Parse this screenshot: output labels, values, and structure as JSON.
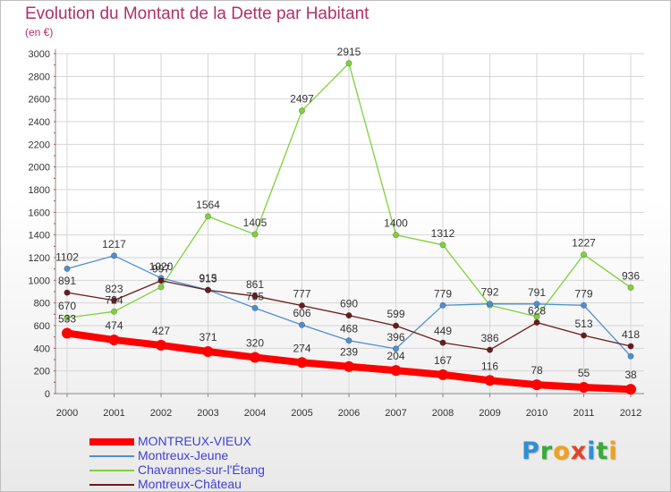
{
  "title": "Evolution du Montant de la Dette par Habitant",
  "unit_label": "(en €)",
  "logo_text": "Proxiti",
  "chart_data": {
    "type": "line",
    "title": "Evolution du Montant de la Dette par Habitant",
    "ylabel": "(en €)",
    "xlabel": "",
    "x": [
      2000,
      2001,
      2002,
      2003,
      2004,
      2005,
      2006,
      2007,
      2008,
      2009,
      2010,
      2011,
      2012
    ],
    "ylim": [
      0,
      3000
    ],
    "yticks": [
      0,
      200,
      400,
      600,
      800,
      1000,
      1200,
      1400,
      1600,
      1800,
      2000,
      2200,
      2400,
      2600,
      2800,
      3000
    ],
    "grid": true,
    "legend_position": "bottom-left",
    "series": [
      {
        "name": "MONTREUX-VIEUX",
        "color": "#ff0000",
        "values": [
          533,
          474,
          427,
          371,
          320,
          274,
          239,
          204,
          167,
          116,
          78,
          55,
          38
        ]
      },
      {
        "name": "Montreux-Jeune",
        "color": "#4f8fcf",
        "values": [
          1102,
          1217,
          1020,
          915,
          755,
          606,
          468,
          396,
          779,
          792,
          791,
          779,
          330
        ]
      },
      {
        "name": "Chavannes-sur-l'Étang",
        "color": "#7fd13b",
        "values": [
          670,
          724,
          940,
          1564,
          1405,
          2497,
          2915,
          1400,
          1312,
          780,
          680,
          1227,
          936
        ]
      },
      {
        "name": "Montreux-Château",
        "color": "#6b1c1c",
        "values": [
          891,
          823,
          997,
          913,
          861,
          777,
          690,
          599,
          449,
          386,
          628,
          513,
          418
        ]
      }
    ],
    "data_labels": [
      {
        "series": 0,
        "labels": [
          "533",
          "474",
          "427",
          "371",
          "320",
          "274",
          "239",
          "204",
          "167",
          "116",
          "78",
          "55",
          "38"
        ]
      },
      {
        "series": 1,
        "labels": [
          "1102",
          "1217",
          "1020",
          "915",
          "755",
          "606",
          "468",
          "396",
          "779",
          "792",
          "791",
          "779",
          ""
        ]
      },
      {
        "series": 2,
        "labels": [
          "670",
          "724",
          "",
          "1564",
          "1405",
          "2497",
          "2915",
          "1400",
          "1312",
          "",
          "",
          "1227",
          "936"
        ]
      },
      {
        "series": 3,
        "labels": [
          "891",
          "823",
          "997",
          "913",
          "861",
          "777",
          "690",
          "599",
          "449",
          "386",
          "628",
          "513",
          "418"
        ]
      }
    ]
  }
}
